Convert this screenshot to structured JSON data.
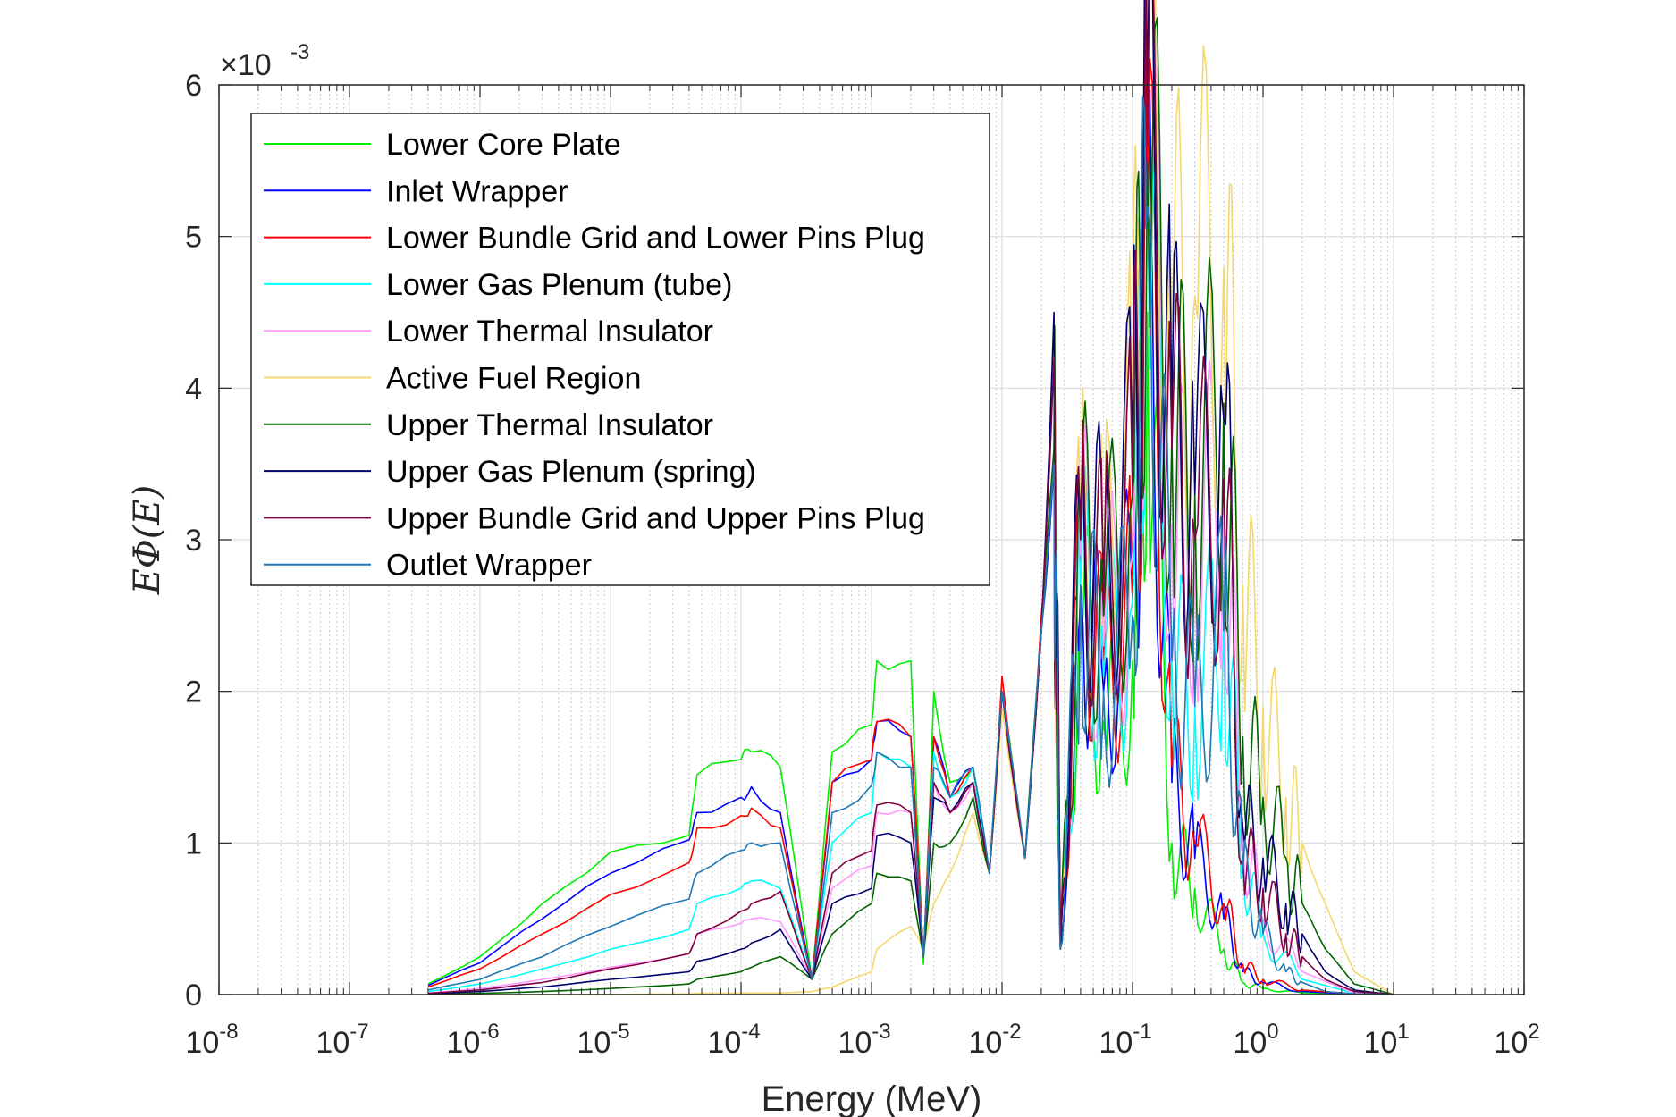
{
  "chart_data": {
    "type": "line",
    "xlabel": "Energy (MeV)",
    "ylabel": "EΦ(E)",
    "y_multiplier_label": "×10",
    "y_multiplier_exponent": "-3",
    "x_scale": "log",
    "xlim": [
      1e-08,
      100
    ],
    "ylim": [
      0,
      0.006
    ],
    "grid": "on",
    "legend_position": "top-left",
    "x_ticks": [
      {
        "base": "10",
        "exp": "-8",
        "value": 1e-08
      },
      {
        "base": "10",
        "exp": "-7",
        "value": 1e-07
      },
      {
        "base": "10",
        "exp": "-6",
        "value": 1e-06
      },
      {
        "base": "10",
        "exp": "-5",
        "value": 1e-05
      },
      {
        "base": "10",
        "exp": "-4",
        "value": 0.0001
      },
      {
        "base": "10",
        "exp": "-3",
        "value": 0.001
      },
      {
        "base": "10",
        "exp": "-2",
        "value": 0.01
      },
      {
        "base": "10",
        "exp": "-1",
        "value": 0.1
      },
      {
        "base": "10",
        "exp": "0",
        "value": 1
      },
      {
        "base": "10",
        "exp": "1",
        "value": 10
      },
      {
        "base": "10",
        "exp": "2",
        "value": 100
      }
    ],
    "y_ticks": [
      {
        "label": "0",
        "value": 0
      },
      {
        "label": "1",
        "value": 0.001
      },
      {
        "label": "2",
        "value": 0.002
      },
      {
        "label": "3",
        "value": 0.003
      },
      {
        "label": "4",
        "value": 0.004
      },
      {
        "label": "5",
        "value": 0.005
      },
      {
        "label": "6",
        "value": 0.006
      }
    ],
    "series": [
      {
        "name": "Lower Core Plate",
        "color": "#00ee00",
        "x": [
          4e-07,
          1e-06,
          3e-06,
          1e-05,
          4e-05,
          4.6e-05,
          0.0001,
          0.00012,
          0.0002,
          0.00035,
          0.0005,
          0.001,
          0.0011,
          0.002,
          0.0025,
          0.003,
          0.004,
          0.006,
          0.008,
          0.01,
          0.015,
          0.02,
          0.025,
          0.028,
          0.04,
          0.06,
          0.1,
          0.13,
          0.2,
          0.3,
          0.5,
          0.7,
          1,
          2,
          5,
          10
        ],
        "y": [
          7e-05,
          0.00025,
          0.0006,
          0.00094,
          0.00105,
          0.00145,
          0.00155,
          0.0016,
          0.0015,
          0.0001,
          0.0016,
          0.00178,
          0.0022,
          0.0022,
          0.0002,
          0.002,
          0.0014,
          0.0015,
          0.0008,
          0.002,
          0.0009,
          0.0024,
          0.0035,
          0.0003,
          0.0025,
          0.0018,
          0.0022,
          0.0045,
          0.001,
          0.0007,
          0.0003,
          8e-05,
          4e-05,
          1e-05,
          2e-06,
          0
        ]
      },
      {
        "name": "Inlet Wrapper",
        "color": "#0000ff",
        "x": [
          4e-07,
          1e-06,
          3e-06,
          1e-05,
          4e-05,
          4.6e-05,
          0.0001,
          0.00012,
          0.0002,
          0.00035,
          0.0005,
          0.001,
          0.0011,
          0.002,
          0.0025,
          0.003,
          0.004,
          0.006,
          0.008,
          0.01,
          0.015,
          0.02,
          0.025,
          0.028,
          0.04,
          0.06,
          0.1,
          0.13,
          0.2,
          0.3,
          0.5,
          0.7,
          1,
          2,
          5,
          10
        ],
        "y": [
          6e-05,
          0.00021,
          0.0005,
          0.0008,
          0.00102,
          0.0012,
          0.0013,
          0.00137,
          0.0012,
          0.0001,
          0.0014,
          0.00155,
          0.0018,
          0.0017,
          0.00025,
          0.0017,
          0.0013,
          0.0015,
          0.0008,
          0.002,
          0.0009,
          0.0024,
          0.0035,
          0.0003,
          0.0027,
          0.002,
          0.0026,
          0.0049,
          0.0014,
          0.0009,
          0.0005,
          0.00015,
          8e-05,
          2e-05,
          4e-06,
          0
        ]
      },
      {
        "name": "Lower Bundle Grid and Lower Pins Plug",
        "color": "#ff0000",
        "x": [
          4e-07,
          1e-06,
          3e-06,
          1e-05,
          4e-05,
          4.6e-05,
          0.0001,
          0.00012,
          0.0002,
          0.00035,
          0.0005,
          0.001,
          0.0011,
          0.002,
          0.0025,
          0.003,
          0.004,
          0.006,
          0.008,
          0.01,
          0.015,
          0.02,
          0.025,
          0.028,
          0.04,
          0.06,
          0.1,
          0.13,
          0.2,
          0.3,
          0.5,
          0.7,
          1,
          2,
          5,
          10
        ],
        "y": [
          5e-05,
          0.00017,
          0.0004,
          0.00066,
          0.00087,
          0.0011,
          0.00118,
          0.00123,
          0.0011,
          0.0001,
          0.0014,
          0.00155,
          0.0018,
          0.0017,
          0.00025,
          0.0017,
          0.0013,
          0.0015,
          0.0008,
          0.0021,
          0.0009,
          0.0025,
          0.0036,
          0.0003,
          0.0028,
          0.0021,
          0.0026,
          0.0052,
          0.0015,
          0.001,
          0.0006,
          0.0002,
          0.0001,
          3e-05,
          5e-06,
          0
        ]
      },
      {
        "name": "Lower Gas Plenum (tube)",
        "color": "#00ffff",
        "x": [
          4e-07,
          1e-06,
          3e-06,
          1e-05,
          4e-05,
          4.6e-05,
          0.0001,
          0.00012,
          0.0002,
          0.00035,
          0.0005,
          0.001,
          0.0011,
          0.002,
          0.0025,
          0.003,
          0.004,
          0.006,
          0.008,
          0.01,
          0.015,
          0.02,
          0.025,
          0.028,
          0.04,
          0.06,
          0.1,
          0.13,
          0.2,
          0.3,
          0.5,
          0.7,
          1,
          2,
          5,
          10
        ],
        "y": [
          2e-05,
          7e-05,
          0.00017,
          0.0003,
          0.00043,
          0.0006,
          0.0007,
          0.00075,
          0.0007,
          0.0001,
          0.001,
          0.0012,
          0.0016,
          0.0015,
          0.00025,
          0.0016,
          0.0013,
          0.0015,
          0.0008,
          0.002,
          0.0009,
          0.0024,
          0.0035,
          0.0003,
          0.0027,
          0.0021,
          0.0026,
          0.0053,
          0.0022,
          0.0019,
          0.0025,
          0.0009,
          0.0004,
          0.0001,
          1e-05,
          0
        ]
      },
      {
        "name": "Lower Thermal Insulator",
        "color": "#ff99ff",
        "x": [
          4e-07,
          1e-06,
          3e-06,
          1e-05,
          4e-05,
          4.6e-05,
          0.0001,
          0.00012,
          0.0002,
          0.00035,
          0.0005,
          0.001,
          0.0011,
          0.002,
          0.0025,
          0.003,
          0.004,
          0.006,
          0.008,
          0.01,
          0.015,
          0.02,
          0.025,
          0.028,
          0.04,
          0.06,
          0.1,
          0.13,
          0.2,
          0.3,
          0.5,
          0.7,
          1,
          2,
          5,
          10
        ],
        "y": [
          1e-05,
          4e-05,
          0.0001,
          0.00018,
          0.00027,
          0.0004,
          0.00047,
          0.0005,
          0.00048,
          0.0001,
          0.0007,
          0.00085,
          0.0012,
          0.0012,
          0.00025,
          0.0014,
          0.0012,
          0.0014,
          0.0008,
          0.002,
          0.0009,
          0.0024,
          0.0036,
          0.0003,
          0.0029,
          0.0023,
          0.0029,
          0.0055,
          0.0031,
          0.0029,
          0.0033,
          0.0011,
          0.0005,
          0.00015,
          1e-05,
          0
        ]
      },
      {
        "name": "Active Fuel Region",
        "color": "#f5d76e",
        "x": [
          4e-07,
          1e-06,
          3e-06,
          1e-05,
          4e-05,
          4.6e-05,
          0.0001,
          0.00012,
          0.0002,
          0.00035,
          0.0005,
          0.001,
          0.0011,
          0.002,
          0.0025,
          0.003,
          0.004,
          0.006,
          0.008,
          0.01,
          0.015,
          0.02,
          0.025,
          0.028,
          0.04,
          0.06,
          0.1,
          0.13,
          0.2,
          0.3,
          0.5,
          0.7,
          1,
          1.5,
          2,
          3,
          5,
          10
        ],
        "y": [
          0,
          0,
          0,
          0,
          5e-06,
          8e-06,
          1e-05,
          1e-05,
          1e-05,
          2e-05,
          5e-05,
          0.00015,
          0.0003,
          0.00045,
          0.0003,
          0.0006,
          0.0008,
          0.0012,
          0.0008,
          0.0019,
          0.0009,
          0.0024,
          0.0036,
          0.0003,
          0.0031,
          0.0027,
          0.0038,
          0.0059,
          0.0044,
          0.0046,
          0.0048,
          0.0027,
          0.0019,
          0.0013,
          0.001,
          0.0006,
          0.00015,
          0
        ]
      },
      {
        "name": "Upper Thermal Insulator",
        "color": "#006400",
        "x": [
          4e-07,
          1e-06,
          3e-06,
          1e-05,
          4e-05,
          4.6e-05,
          0.0001,
          0.00012,
          0.0002,
          0.00035,
          0.0005,
          0.001,
          0.0011,
          0.002,
          0.0025,
          0.003,
          0.004,
          0.006,
          0.008,
          0.01,
          0.015,
          0.02,
          0.025,
          0.028,
          0.04,
          0.06,
          0.1,
          0.13,
          0.2,
          0.3,
          0.5,
          0.7,
          1,
          1.5,
          2,
          3,
          5,
          10
        ],
        "y": [
          2e-06,
          8e-06,
          2e-05,
          4e-05,
          7e-05,
          0.0001,
          0.00015,
          0.00018,
          0.00025,
          0.0001,
          0.0004,
          0.0006,
          0.0008,
          0.00075,
          0.00025,
          0.001,
          0.001,
          0.0013,
          0.0008,
          0.002,
          0.0009,
          0.0024,
          0.0036,
          0.0003,
          0.003,
          0.0025,
          0.0033,
          0.0055,
          0.0037,
          0.0033,
          0.0039,
          0.0017,
          0.0013,
          0.0009,
          0.0006,
          0.0003,
          7e-05,
          0
        ]
      },
      {
        "name": "Upper Gas Plenum (spring)",
        "color": "#00006e",
        "x": [
          4e-07,
          1e-06,
          3e-06,
          1e-05,
          4e-05,
          4.6e-05,
          0.0001,
          0.00012,
          0.0002,
          0.00035,
          0.0005,
          0.001,
          0.0011,
          0.002,
          0.0025,
          0.003,
          0.004,
          0.006,
          0.008,
          0.01,
          0.015,
          0.02,
          0.025,
          0.028,
          0.04,
          0.06,
          0.1,
          0.13,
          0.2,
          0.3,
          0.5,
          0.7,
          1,
          1.5,
          2,
          3,
          5,
          10
        ],
        "y": [
          5e-06,
          2e-05,
          5e-05,
          0.0001,
          0.00015,
          0.00022,
          0.0003,
          0.00034,
          0.00043,
          0.0001,
          0.0006,
          0.0007,
          0.00105,
          0.001,
          0.00025,
          0.0013,
          0.0012,
          0.0014,
          0.0008,
          0.002,
          0.0009,
          0.0024,
          0.0045,
          0.0003,
          0.0032,
          0.0027,
          0.0035,
          0.0057,
          0.0038,
          0.0033,
          0.0038,
          0.0011,
          0.0009,
          0.0006,
          0.0004,
          0.00015,
          3e-05,
          0
        ]
      },
      {
        "name": "Upper Bundle Grid and Upper Pins Plug",
        "color": "#800040",
        "x": [
          4e-07,
          1e-06,
          3e-06,
          1e-05,
          4e-05,
          4.6e-05,
          0.0001,
          0.00012,
          0.0002,
          0.00035,
          0.0005,
          0.001,
          0.0011,
          0.002,
          0.0025,
          0.003,
          0.004,
          0.006,
          0.008,
          0.01,
          0.015,
          0.02,
          0.025,
          0.028,
          0.04,
          0.06,
          0.1,
          0.13,
          0.2,
          0.3,
          0.5,
          0.7,
          1,
          1.5,
          2,
          3,
          5,
          10
        ],
        "y": [
          8e-06,
          3e-05,
          8e-05,
          0.00017,
          0.00027,
          0.0004,
          0.00055,
          0.0006,
          0.00068,
          0.0001,
          0.0008,
          0.00095,
          0.00125,
          0.0012,
          0.00025,
          0.0014,
          0.0012,
          0.0014,
          0.0008,
          0.002,
          0.0009,
          0.0024,
          0.0042,
          0.0003,
          0.003,
          0.0026,
          0.0033,
          0.0056,
          0.0036,
          0.003,
          0.0034,
          0.0009,
          0.0007,
          0.0004,
          0.00025,
          0.0001,
          2e-05,
          0
        ]
      },
      {
        "name": "Outlet Wrapper",
        "color": "#1f77b4",
        "x": [
          4e-07,
          1e-06,
          3e-06,
          1e-05,
          4e-05,
          4.6e-05,
          0.0001,
          0.00012,
          0.0002,
          0.00035,
          0.0005,
          0.001,
          0.0011,
          0.002,
          0.0025,
          0.003,
          0.004,
          0.006,
          0.008,
          0.01,
          0.015,
          0.02,
          0.025,
          0.028,
          0.04,
          0.06,
          0.1,
          0.13,
          0.2,
          0.3,
          0.5,
          0.7,
          1,
          1.5,
          2,
          3,
          5,
          10
        ],
        "y": [
          3e-05,
          0.0001,
          0.00025,
          0.00045,
          0.00063,
          0.0008,
          0.00095,
          0.001,
          0.001,
          0.0001,
          0.0012,
          0.00138,
          0.0016,
          0.0015,
          0.00025,
          0.0015,
          0.0013,
          0.0015,
          0.0008,
          0.002,
          0.0009,
          0.0024,
          0.0035,
          0.0003,
          0.0027,
          0.002,
          0.0025,
          0.0052,
          0.0022,
          0.0019,
          0.0024,
          0.0008,
          0.0004,
          0.00015,
          8e-05,
          2e-05,
          5e-06,
          0
        ]
      }
    ]
  }
}
